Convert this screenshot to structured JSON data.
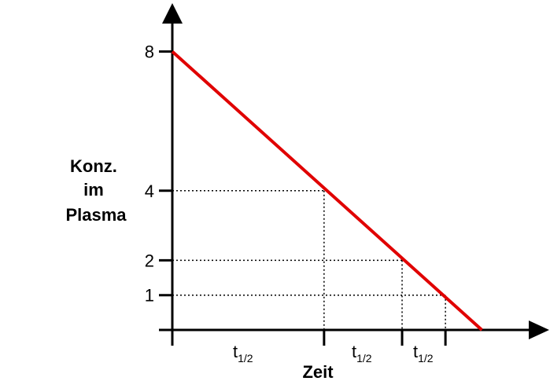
{
  "chart_data": {
    "type": "line",
    "title": "",
    "xlabel": "Zeit",
    "ylabel_lines": [
      "Konz.",
      "im",
      "Plasma"
    ],
    "y_ticks": [
      {
        "value": 8,
        "label": "8"
      },
      {
        "value": 4,
        "label": "4"
      },
      {
        "value": 2,
        "label": "2"
      },
      {
        "value": 1,
        "label": "1"
      }
    ],
    "ylim": [
      0,
      8
    ],
    "series": [
      {
        "color": "#e00000",
        "x": [
          0,
          7.14
        ],
        "y": [
          8,
          0
        ]
      }
    ],
    "reference_points": [
      {
        "x": 3.5,
        "y": 4
      },
      {
        "x": 5.3,
        "y": 2
      },
      {
        "x": 6.3,
        "y": 1
      }
    ],
    "half_life_marks": [
      0,
      3.5,
      5.3,
      6.3
    ],
    "half_life_labels": [
      {
        "base": "t",
        "sub": "1/2"
      },
      {
        "base": "t",
        "sub": "1/2"
      },
      {
        "base": "t",
        "sub": "1/2"
      }
    ],
    "grid": false
  }
}
